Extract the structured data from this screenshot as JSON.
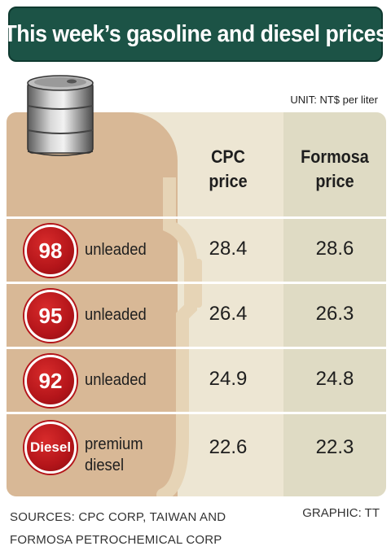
{
  "title": "This week’s gasoline and diesel prices",
  "unit": "UNIT: NT$ per liter",
  "columns": {
    "cpc": [
      "CPC",
      "price"
    ],
    "formosa": [
      "Formosa",
      "price"
    ]
  },
  "rows": [
    {
      "badge": "98",
      "label": [
        "unleaded"
      ],
      "cpc": "28.4",
      "formosa": "28.6"
    },
    {
      "badge": "95",
      "label": [
        "unleaded"
      ],
      "cpc": "26.4",
      "formosa": "26.3"
    },
    {
      "badge": "92",
      "label": [
        "unleaded"
      ],
      "cpc": "24.9",
      "formosa": "24.8"
    },
    {
      "badge": "Diesel",
      "label": [
        "premium",
        "diesel"
      ],
      "cpc": "22.6",
      "formosa": "22.3"
    }
  ],
  "sources": [
    "SOURCES: CPC CORP, TAIWAN AND",
    "FORMOSA PETROCHEMICAL CORP"
  ],
  "credit": "GRAPHIC: TT",
  "icons": [
    "oil-barrel-icon",
    "fuel-pump-icon"
  ],
  "colors": {
    "title_bg": "#1c5346",
    "badge": "#b4151a",
    "panel_tan": "#d8b896",
    "panel_light": "#ede6d3"
  }
}
